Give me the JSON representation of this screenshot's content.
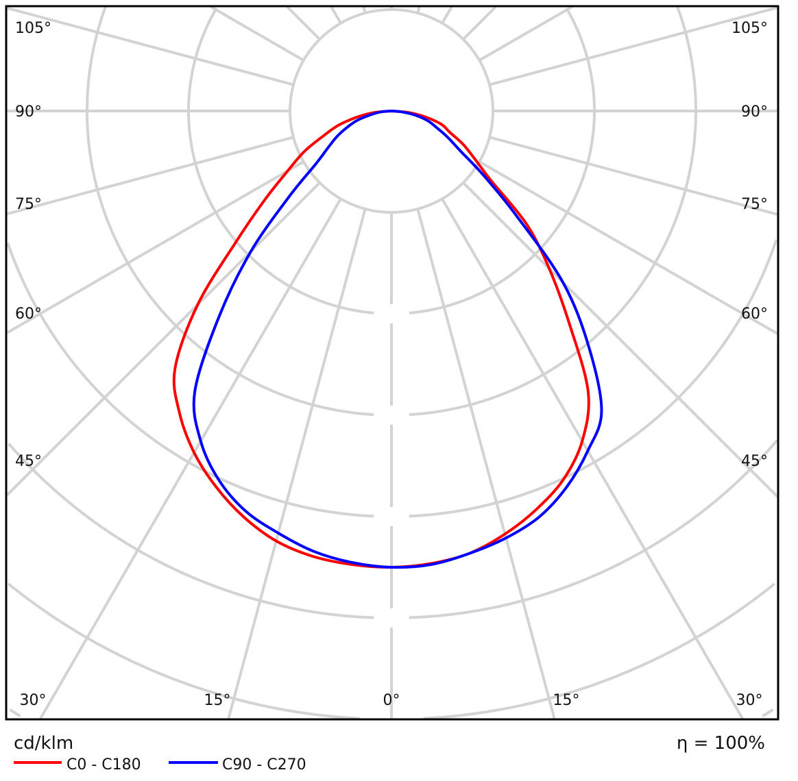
{
  "chart_data": {
    "type": "polar",
    "unit_label": "cd/klm",
    "efficiency_label": "η = 100%",
    "radial_tick_labels": [],
    "grid": true,
    "angle_step_deg": 15,
    "angle_labels_left": [
      "105°",
      "90°",
      "75°",
      "60°",
      "45°"
    ],
    "angle_labels_right": [
      "105°",
      "90°",
      "75°",
      "60°",
      "45°"
    ],
    "angle_labels_bottom": [
      "30°",
      "15°",
      "0°",
      "15°",
      "30°"
    ],
    "legend_placement": "bottom-left",
    "angles_deg": [
      -90,
      -85,
      -80,
      -75,
      -70,
      -65,
      -60,
      -55,
      -50,
      -45,
      -40,
      -35,
      -30,
      -25,
      -20,
      -15,
      -10,
      -5,
      0,
      5,
      10,
      15,
      20,
      25,
      30,
      35,
      40,
      45,
      50,
      55,
      60,
      65,
      70,
      75,
      80,
      85,
      90
    ],
    "radial_unit_note": "values in grid-ring divisions (ring labels not printed)",
    "series": [
      {
        "name": "C0 - C180",
        "color": "#ff0000",
        "values": [
          0,
          0.17,
          0.34,
          0.54,
          0.71,
          0.95,
          1.18,
          1.52,
          1.99,
          2.7,
          3.32,
          3.64,
          3.89,
          4.09,
          4.26,
          4.39,
          4.46,
          4.49,
          4.5,
          4.48,
          4.43,
          4.32,
          4.18,
          4.01,
          3.76,
          3.38,
          2.72,
          2.2,
          1.74,
          1.2,
          0.95,
          0.78,
          0.61,
          0.51,
          0.34,
          0.17,
          0
        ]
      },
      {
        "name": "C90 - C270",
        "color": "#0000ff",
        "values": [
          0,
          0.1,
          0.2,
          0.34,
          0.46,
          0.59,
          0.72,
          0.91,
          1.32,
          1.96,
          2.64,
          3.38,
          3.76,
          4.02,
          4.2,
          4.31,
          4.41,
          4.47,
          4.5,
          4.49,
          4.43,
          4.36,
          4.26,
          4.09,
          3.87,
          3.61,
          3.02,
          2.39,
          1.61,
          1.11,
          0.78,
          0.61,
          0.47,
          0.37,
          0.24,
          0.1,
          0
        ]
      }
    ]
  }
}
